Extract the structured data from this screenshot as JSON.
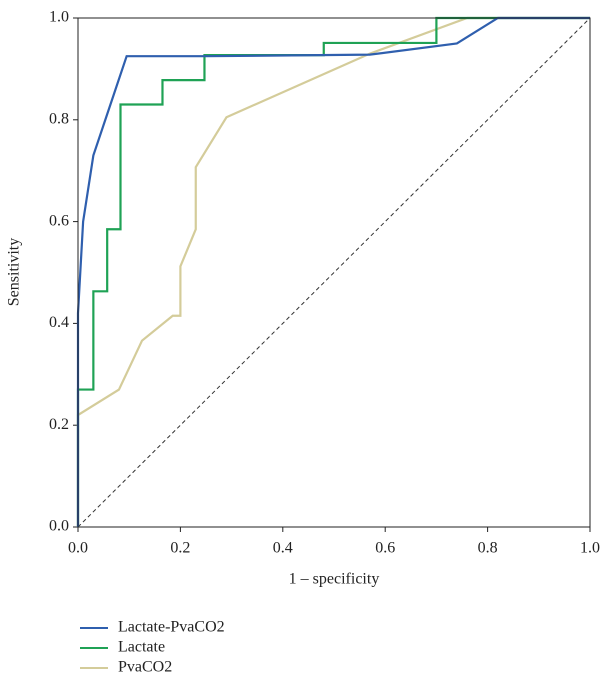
{
  "chart_data": {
    "type": "line",
    "x_label": "1 – specificity",
    "y_label": "Sensitivity",
    "xlim": [
      0,
      1
    ],
    "ylim": [
      0,
      1
    ],
    "xticks": [
      {
        "value": 0,
        "label": "0.0"
      },
      0.2,
      0.4,
      0.6,
      0.8,
      {
        "value": 1,
        "label": "1.0"
      }
    ],
    "yticks": [
      {
        "value": 0,
        "label": "0.0"
      },
      0.2,
      0.4,
      0.6,
      0.8,
      {
        "value": 1,
        "label": "1.0"
      }
    ],
    "series": [
      {
        "name": "Lactate-PvaCO2",
        "color": "#2f5fae",
        "x": [
          0,
          0,
          0.01,
          0.03,
          0.05,
          0.07,
          0.095,
          0.25,
          0.57,
          0.74,
          0.82,
          1
        ],
        "values": [
          0,
          0.42,
          0.6,
          0.73,
          0.79,
          0.85,
          0.925,
          0.925,
          0.928,
          0.95,
          1,
          1
        ]
      },
      {
        "name": "Lactate",
        "color": "#1fa255",
        "x": [
          0,
          0,
          0.03,
          0.03,
          0.057,
          0.057,
          0.083,
          0.083,
          0.165,
          0.165,
          0.247,
          0.247,
          0.48,
          0.48,
          0.7,
          0.7,
          1
        ],
        "values": [
          0,
          0.27,
          0.27,
          0.463,
          0.463,
          0.585,
          0.585,
          0.83,
          0.83,
          0.878,
          0.878,
          0.927,
          0.927,
          0.951,
          0.951,
          1,
          1
        ]
      },
      {
        "name": "PvaCO2",
        "color": "#d4cc9a",
        "x": [
          0,
          0,
          0.08,
          0.125,
          0.185,
          0.2,
          0.2,
          0.23,
          0.23,
          0.29,
          0.57,
          0.76,
          1
        ],
        "values": [
          0,
          0.22,
          0.27,
          0.366,
          0.415,
          0.415,
          0.512,
          0.585,
          0.707,
          0.805,
          0.93,
          1,
          1
        ]
      }
    ]
  }
}
